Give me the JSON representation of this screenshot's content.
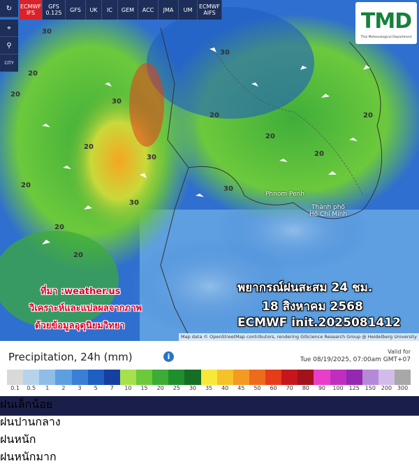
{
  "toolbar": {
    "models": [
      "ECMWF IFS",
      "GFS 0.125",
      "GFS",
      "UK",
      "IC",
      "GEM",
      "ACC",
      "JMA",
      "UM",
      "ECMWF AIFS"
    ],
    "side_buttons": [
      "CITY"
    ]
  },
  "logo": {
    "title": "TMD",
    "subtitle": "Thai Meteorological Department"
  },
  "map": {
    "places": [
      "Phnom Penh",
      "Thành phố Hồ Chí Minh"
    ],
    "contour_labels": [
      "20",
      "20",
      "20",
      "30",
      "30",
      "20",
      "30",
      "20",
      "30",
      "20",
      "20",
      "30",
      "20",
      "20",
      "20",
      "30"
    ],
    "overlay": {
      "source": "ที่มา :weather.us",
      "note1": "วิเคราะห์และแปลผลจากภาพ",
      "note2": "ด้วยข้อมูลอุตุนิยมวิทยา",
      "headline": "พยากรณ์ฝนสะสม 24 ชม.",
      "date": "18 สิงหาคม 2568",
      "model": "ECMWF init.2025081412"
    },
    "attribution": "Map data © OpenStreetMap contributors, rendering GIScience Research Group @ Heidelberg University"
  },
  "legend": {
    "title": "Precipitation, 24h (mm)",
    "info": "i",
    "valid_label": "Valid for",
    "valid_time": "Tue 08/19/2025, 07:00am GMT+07",
    "scale": [
      {
        "label": "0.1",
        "color": "#d9d9d9"
      },
      {
        "label": "0.5",
        "color": "#b7d3ec"
      },
      {
        "label": "1",
        "color": "#8fbde8"
      },
      {
        "label": "2",
        "color": "#5d9fe0"
      },
      {
        "label": "3",
        "color": "#3b7fd6"
      },
      {
        "label": "5",
        "color": "#1f5fc2"
      },
      {
        "label": "7",
        "color": "#1540a0"
      },
      {
        "label": "10",
        "color": "#a7e04d"
      },
      {
        "label": "15",
        "color": "#6cc93c"
      },
      {
        "label": "20",
        "color": "#3cac34"
      },
      {
        "label": "25",
        "color": "#1f8e2c"
      },
      {
        "label": "30",
        "color": "#166e24"
      },
      {
        "label": "35",
        "color": "#f7e83a"
      },
      {
        "label": "40",
        "color": "#f5c22a"
      },
      {
        "label": "45",
        "color": "#f39a22"
      },
      {
        "label": "50",
        "color": "#ee6a1c"
      },
      {
        "label": "60",
        "color": "#e53c1a"
      },
      {
        "label": "70",
        "color": "#c6161c"
      },
      {
        "label": "80",
        "color": "#a1121c"
      },
      {
        "label": "90",
        "color": "#e83ec8"
      },
      {
        "label": "100",
        "color": "#c02ec0"
      },
      {
        "label": "125",
        "color": "#9428b0"
      },
      {
        "label": "150",
        "color": "#b48ad8"
      },
      {
        "label": "200",
        "color": "#d2bbe8"
      },
      {
        "label": "300",
        "color": "#a8a8a8"
      }
    ],
    "categories": [
      "ฝนเล็กน้อย",
      "ฝนปานกลาง",
      "ฝนหนัก",
      "ฝนหนักมาก"
    ]
  }
}
